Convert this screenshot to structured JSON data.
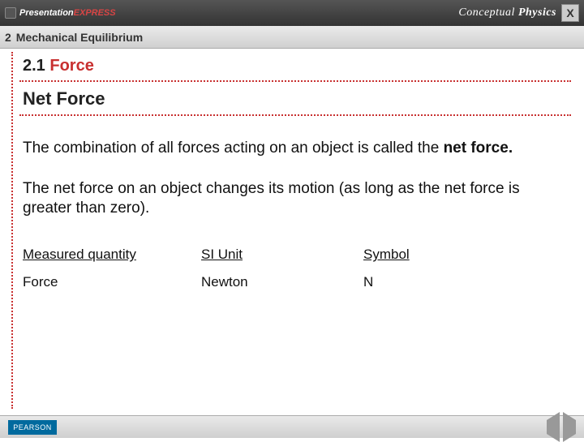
{
  "topbar": {
    "express_prefix": "Presentation",
    "express_suffix": "EXPRESS",
    "brand_c": "Conceptual",
    "brand_p": "Physics",
    "close": "X"
  },
  "chapter": {
    "num": "2",
    "title": "Mechanical Equilibrium"
  },
  "section": {
    "num": "2.1",
    "title": "Force"
  },
  "subtitle": "Net Force",
  "para1_a": "The combination of all forces acting on an object is called the ",
  "para1_b": "net force.",
  "para2": "The net force on an object changes its motion (as long as the net force is greater than zero).",
  "table": {
    "headers": [
      "Measured quantity",
      "SI Unit",
      "Symbol"
    ],
    "rows": [
      [
        "Force",
        "Newton",
        "N"
      ]
    ]
  },
  "footer": {
    "publisher": "PEARSON"
  },
  "colors": {
    "accent_red": "#c83030",
    "bar_dark": "#333333",
    "footer_bg": "#d6d6d6",
    "pearson_blue": "#006a9e"
  }
}
